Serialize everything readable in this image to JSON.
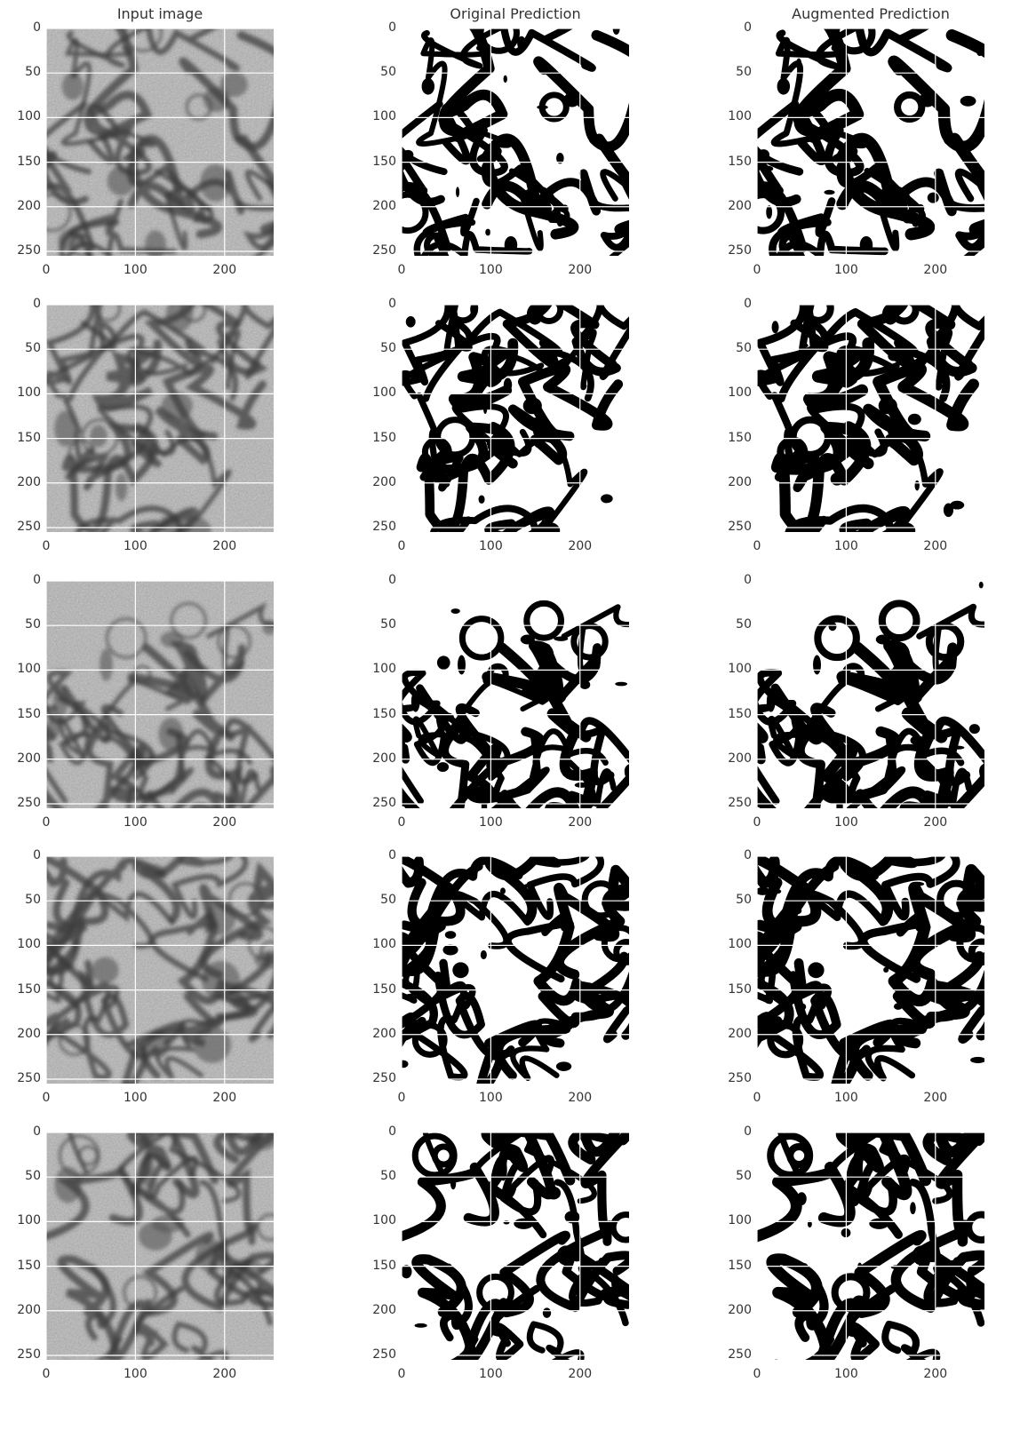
{
  "titles": [
    "Input image",
    "Original Prediction",
    "Augmented Prediction"
  ],
  "chart_data": {
    "type": "image_grid",
    "rows": 5,
    "cols": 3,
    "xlim": [
      0,
      255
    ],
    "ylim": [
      255,
      0
    ],
    "xticks": [
      "0",
      "100",
      "200"
    ],
    "yticks": [
      "0",
      "50",
      "100",
      "150",
      "200",
      "250"
    ],
    "grid": true,
    "panel_kinds": [
      "input",
      "original",
      "augmented"
    ],
    "colors": {
      "grid": "#ffffff",
      "mask_fg": "#000000",
      "mask_bg": "#ffffff",
      "text": "#333333"
    }
  }
}
